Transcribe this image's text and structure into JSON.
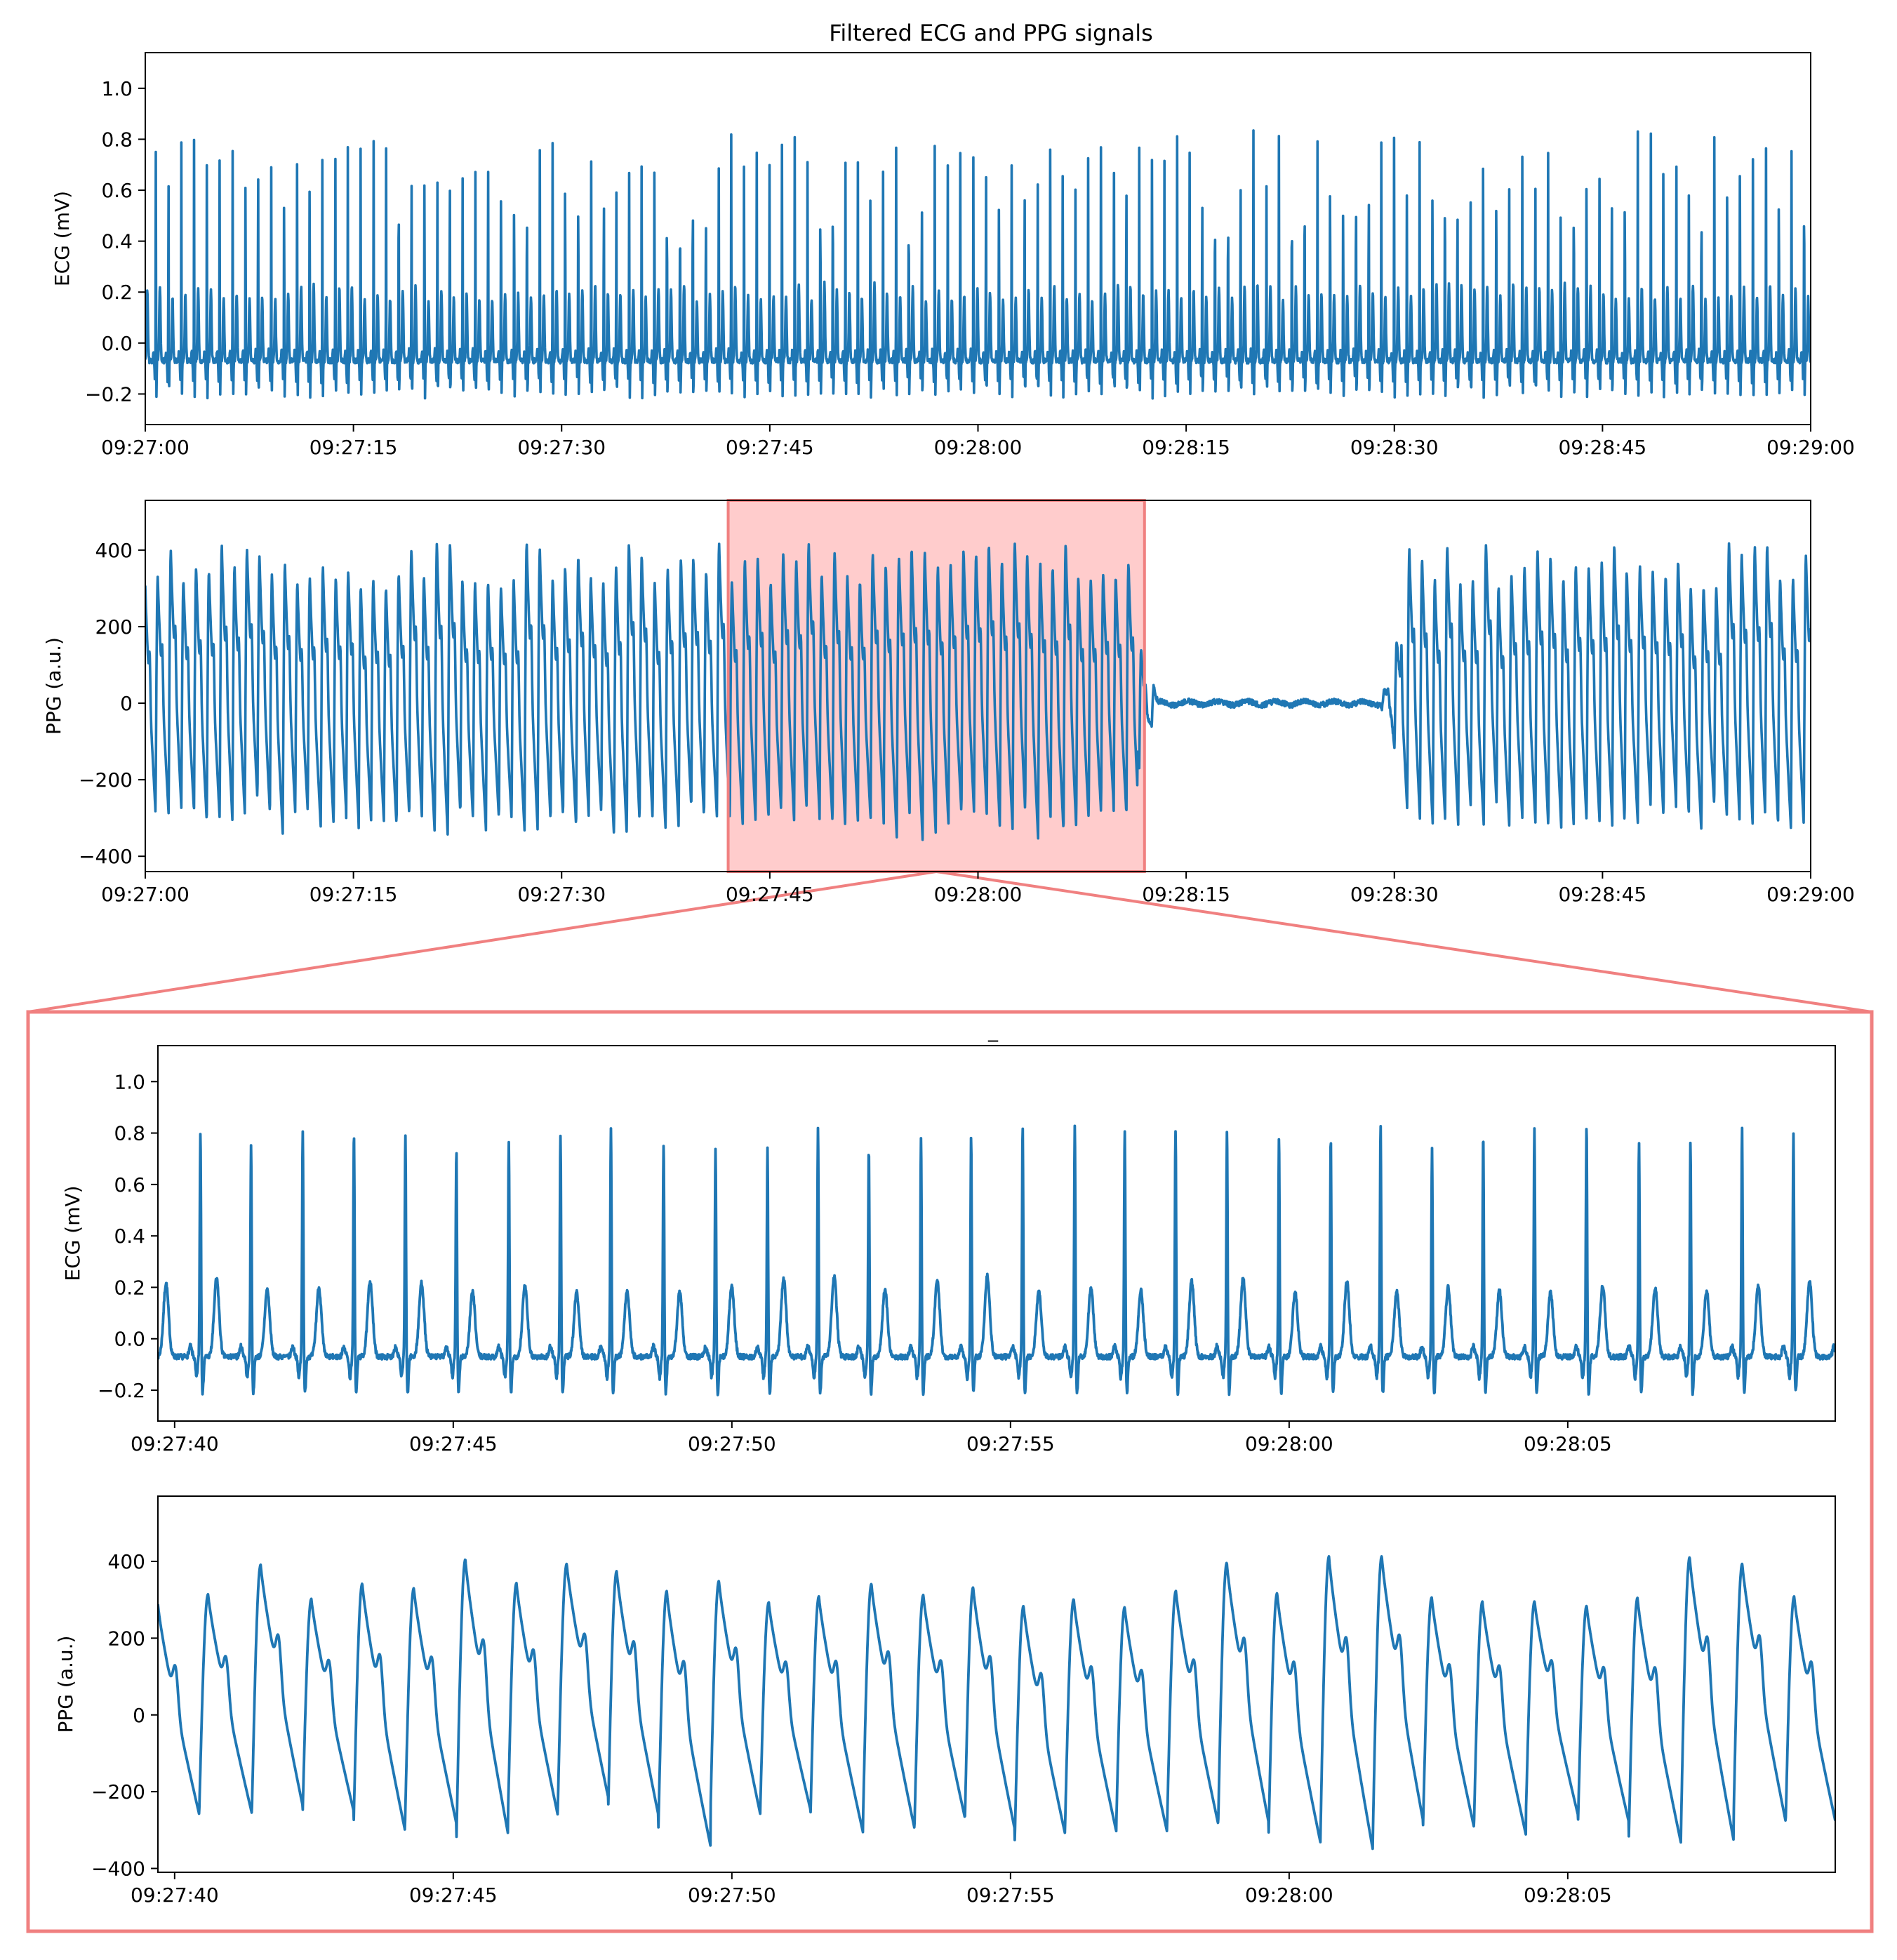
{
  "title": "Filtered ECG and PPG signals",
  "colors": {
    "signal": "#1f77b4",
    "highlight_fill": "#ffcccc",
    "highlight_edge": "#f08080",
    "axes": "#000000"
  },
  "chart_data": [
    {
      "id": "ecg-full",
      "type": "line",
      "title": "Filtered ECG and PPG signals",
      "ylabel": "ECG (mV)",
      "xlabel": "",
      "x_range": [
        "09:27:00",
        "09:29:00"
      ],
      "ylim": [
        -0.32,
        1.14
      ],
      "xticks": [
        "09:27:00",
        "09:27:15",
        "09:27:30",
        "09:27:45",
        "09:28:00",
        "09:28:15",
        "09:28:30",
        "09:28:45",
        "09:29:00"
      ],
      "yticks": [
        "−0.2",
        "0.0",
        "0.2",
        "0.4",
        "0.6",
        "0.8",
        "1.0"
      ],
      "ytick_values": [
        -0.2,
        0.0,
        0.2,
        0.4,
        0.6,
        0.8,
        1.0
      ],
      "signal": {
        "beat_interval_s": 0.92,
        "r_peak_mV": [
          0.78,
          0.92
        ],
        "t_wave_mV": 0.28,
        "baseline_mV": -0.07,
        "s_wave_mV": -0.12
      },
      "grid": false
    },
    {
      "id": "ppg-full",
      "type": "line",
      "ylabel": "PPG (a.u.)",
      "xlabel": "",
      "x_range": [
        "09:27:00",
        "09:29:00"
      ],
      "ylim": [
        -440,
        530
      ],
      "xticks": [
        "09:27:00",
        "09:27:15",
        "09:27:30",
        "09:27:45",
        "09:28:00",
        "09:28:15",
        "09:28:30",
        "09:28:45",
        "09:29:00"
      ],
      "yticks": [
        "−400",
        "−200",
        "0",
        "200",
        "400"
      ],
      "ytick_values": [
        -400,
        -200,
        0,
        200,
        400
      ],
      "signal": {
        "beat_interval_s": 0.92,
        "peak": [
          300,
          420
        ],
        "trough": [
          -280,
          -330
        ],
        "flat_segment": [
          "09:28:13",
          "09:28:29"
        ]
      },
      "highlight": {
        "x_range": [
          "09:27:42",
          "09:28:12"
        ]
      },
      "grid": false
    },
    {
      "id": "ecg-zoom",
      "type": "line",
      "title": "_",
      "ylabel": "ECG (mV)",
      "xlabel": "",
      "x_range": [
        "09:27:39.7",
        "09:28:09.8"
      ],
      "ylim": [
        -0.32,
        1.14
      ],
      "xticks": [
        "09:27:40",
        "09:27:45",
        "09:27:50",
        "09:27:55",
        "09:28:00",
        "09:28:05"
      ],
      "yticks": [
        "−0.2",
        "0.0",
        "0.2",
        "0.4",
        "0.6",
        "0.8",
        "1.0"
      ],
      "ytick_values": [
        -0.2,
        0.0,
        0.2,
        0.4,
        0.6,
        0.8,
        1.0
      ],
      "signal": {
        "beat_interval_s": 0.92,
        "r_peak_mV": [
          0.8,
          0.92
        ],
        "t_wave_mV": 0.29,
        "baseline_mV": -0.07,
        "s_wave_mV": -0.12
      },
      "grid": false
    },
    {
      "id": "ppg-zoom",
      "type": "line",
      "ylabel": "PPG (a.u.)",
      "xlabel": "",
      "x_range": [
        "09:27:39.7",
        "09:28:09.8"
      ],
      "ylim": [
        -410,
        570
      ],
      "xticks": [
        "09:27:40",
        "09:27:45",
        "09:27:50",
        "09:27:55",
        "09:28:00",
        "09:28:05"
      ],
      "yticks": [
        "−400",
        "−200",
        "0",
        "200",
        "400"
      ],
      "ytick_values": [
        -400,
        -200,
        0,
        200,
        400
      ],
      "signal": {
        "beat_interval_s": 0.92,
        "peak": [
          280,
          415
        ],
        "trough": [
          -240,
          -330
        ]
      },
      "grid": false
    }
  ]
}
